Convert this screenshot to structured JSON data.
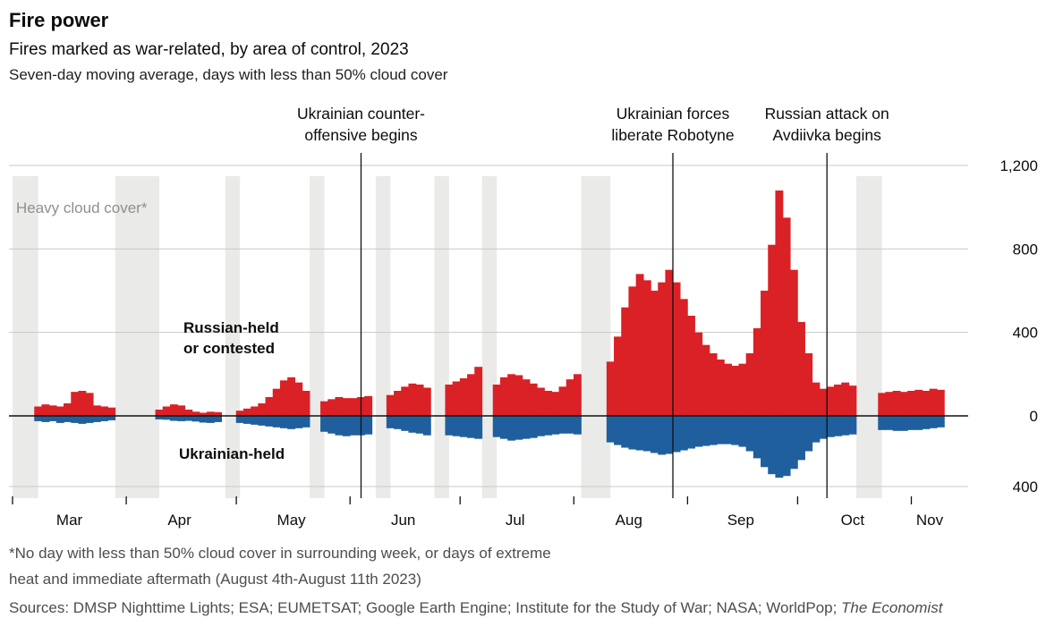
{
  "header": {
    "title": "Fire power",
    "subtitle": "Fires marked as war-related, by area of control, 2023",
    "note": "Seven-day moving average, days with less than 50% cloud cover"
  },
  "annotations": [
    {
      "label": "Ukrainian counter-\noffensive begins",
      "day": 95
    },
    {
      "label": "Ukrainian forces\nliberate Robotyne",
      "day": 180
    },
    {
      "label": "Russian attack on\nAvdiivka begins",
      "day": 222
    }
  ],
  "plot_labels": {
    "cloud_label": "Heavy cloud cover*",
    "russian_label": "Russian-held\nor contested",
    "ukrainian_label": "Ukrainian-held"
  },
  "colors": {
    "russian": "#da2126",
    "ukrainian": "#1f5f9e",
    "cloud_band": "#eaeae8",
    "grid": "#c9c9c9",
    "axis": "#111111",
    "tick_text": "#0c0c0c"
  },
  "chart_data": {
    "type": "bar",
    "title": "Fire power",
    "subtitle": "Fires marked as war-related, by area of control, 2023",
    "ylabel": "Fires marked as war-related (7-day moving average)",
    "x_unit": "day offset from 2023-03-01",
    "months": [
      "Mar",
      "Apr",
      "May",
      "Jun",
      "Jul",
      "Aug",
      "Sep",
      "Oct",
      "Nov"
    ],
    "month_starts_day": [
      0,
      31,
      61,
      92,
      122,
      153,
      184,
      214,
      245
    ],
    "month_label_days": [
      15.5,
      45.5,
      76,
      106.5,
      137,
      168,
      198.5,
      229,
      250
    ],
    "ylim": [
      -400,
      1200
    ],
    "y_ticks": [
      {
        "v": 1200,
        "label": "1,200"
      },
      {
        "v": 800,
        "label": "800"
      },
      {
        "v": 400,
        "label": "400"
      },
      {
        "v": 0,
        "label": "0"
      },
      {
        "v": -400,
        "label": "400"
      }
    ],
    "series": [
      {
        "name": "Russian-held or contested",
        "color": "#da2126",
        "direction": "up"
      },
      {
        "name": "Ukrainian-held",
        "color": "#1f5f9e",
        "direction": "down"
      }
    ],
    "points_format": [
      "day",
      "russian_fires",
      "ukrainian_fires_plotted_downward"
    ],
    "points": [
      [
        7,
        45,
        30
      ],
      [
        9,
        55,
        35
      ],
      [
        11,
        50,
        30
      ],
      [
        13,
        45,
        40
      ],
      [
        15,
        60,
        35
      ],
      [
        17,
        115,
        40
      ],
      [
        19,
        120,
        45
      ],
      [
        21,
        110,
        40
      ],
      [
        23,
        50,
        35
      ],
      [
        25,
        45,
        30
      ],
      [
        27,
        40,
        25
      ],
      [
        40,
        30,
        20
      ],
      [
        42,
        45,
        22
      ],
      [
        44,
        55,
        28
      ],
      [
        46,
        50,
        30
      ],
      [
        48,
        30,
        28
      ],
      [
        50,
        20,
        32
      ],
      [
        52,
        15,
        38
      ],
      [
        54,
        20,
        40
      ],
      [
        56,
        18,
        35
      ],
      [
        62,
        25,
        40
      ],
      [
        64,
        35,
        45
      ],
      [
        66,
        45,
        50
      ],
      [
        68,
        60,
        55
      ],
      [
        70,
        90,
        60
      ],
      [
        72,
        130,
        65
      ],
      [
        74,
        170,
        70
      ],
      [
        76,
        185,
        75
      ],
      [
        78,
        160,
        70
      ],
      [
        80,
        120,
        65
      ],
      [
        85,
        70,
        90
      ],
      [
        87,
        80,
        100
      ],
      [
        89,
        90,
        110
      ],
      [
        91,
        85,
        115
      ],
      [
        93,
        85,
        110
      ],
      [
        95,
        90,
        110
      ],
      [
        97,
        95,
        105
      ],
      [
        103,
        100,
        70
      ],
      [
        105,
        120,
        75
      ],
      [
        107,
        140,
        85
      ],
      [
        109,
        155,
        95
      ],
      [
        111,
        150,
        100
      ],
      [
        113,
        135,
        110
      ],
      [
        119,
        150,
        110
      ],
      [
        121,
        165,
        115
      ],
      [
        123,
        180,
        120
      ],
      [
        125,
        200,
        125
      ],
      [
        127,
        235,
        130
      ],
      [
        132,
        150,
        120
      ],
      [
        134,
        185,
        130
      ],
      [
        136,
        200,
        140
      ],
      [
        138,
        195,
        135
      ],
      [
        140,
        175,
        130
      ],
      [
        142,
        155,
        125
      ],
      [
        144,
        135,
        115
      ],
      [
        146,
        120,
        110
      ],
      [
        148,
        115,
        105
      ],
      [
        150,
        140,
        100
      ],
      [
        152,
        175,
        100
      ],
      [
        154,
        200,
        105
      ],
      [
        163,
        260,
        150
      ],
      [
        165,
        380,
        165
      ],
      [
        167,
        520,
        180
      ],
      [
        169,
        620,
        190
      ],
      [
        171,
        680,
        195
      ],
      [
        173,
        650,
        200
      ],
      [
        175,
        600,
        210
      ],
      [
        177,
        640,
        220
      ],
      [
        179,
        700,
        215
      ],
      [
        181,
        640,
        205
      ],
      [
        183,
        560,
        195
      ],
      [
        185,
        480,
        185
      ],
      [
        187,
        400,
        175
      ],
      [
        189,
        340,
        170
      ],
      [
        191,
        300,
        165
      ],
      [
        193,
        270,
        160
      ],
      [
        195,
        250,
        160
      ],
      [
        197,
        240,
        165
      ],
      [
        199,
        250,
        175
      ],
      [
        201,
        300,
        200
      ],
      [
        203,
        420,
        240
      ],
      [
        205,
        600,
        290
      ],
      [
        207,
        820,
        330
      ],
      [
        209,
        1080,
        350
      ],
      [
        211,
        950,
        340
      ],
      [
        213,
        700,
        300
      ],
      [
        215,
        450,
        250
      ],
      [
        217,
        300,
        200
      ],
      [
        219,
        160,
        150
      ],
      [
        221,
        130,
        130
      ],
      [
        223,
        140,
        120
      ],
      [
        225,
        150,
        115
      ],
      [
        227,
        160,
        110
      ],
      [
        229,
        145,
        105
      ],
      [
        237,
        110,
        80
      ],
      [
        239,
        115,
        80
      ],
      [
        241,
        120,
        85
      ],
      [
        243,
        115,
        85
      ],
      [
        245,
        120,
        80
      ],
      [
        247,
        125,
        80
      ],
      [
        249,
        120,
        75
      ],
      [
        251,
        130,
        70
      ],
      [
        253,
        125,
        65
      ]
    ],
    "cloud_bands_days": [
      [
        0,
        6
      ],
      [
        28,
        39
      ],
      [
        58,
        61
      ],
      [
        81,
        84
      ],
      [
        99,
        102
      ],
      [
        115,
        118
      ],
      [
        128,
        131
      ],
      [
        155,
        162
      ],
      [
        230,
        236
      ]
    ],
    "cloud_bands_meaning": "Heavy cloud cover* periods with no data",
    "grid": true,
    "legend_position": "in-plot text labels"
  },
  "footnotes": {
    "line1": "*No day with less than 50% cloud cover in surrounding week, or days of extreme",
    "line2": "heat and immediate aftermath (August 4th-August 11th 2023)",
    "sources_prefix": "Sources: DMSP Nighttime Lights; ESA; EUMETSAT; Google Earth Engine; Institute for the Study of War; NASA; WorldPop; ",
    "sources_italic": "The Economist"
  }
}
